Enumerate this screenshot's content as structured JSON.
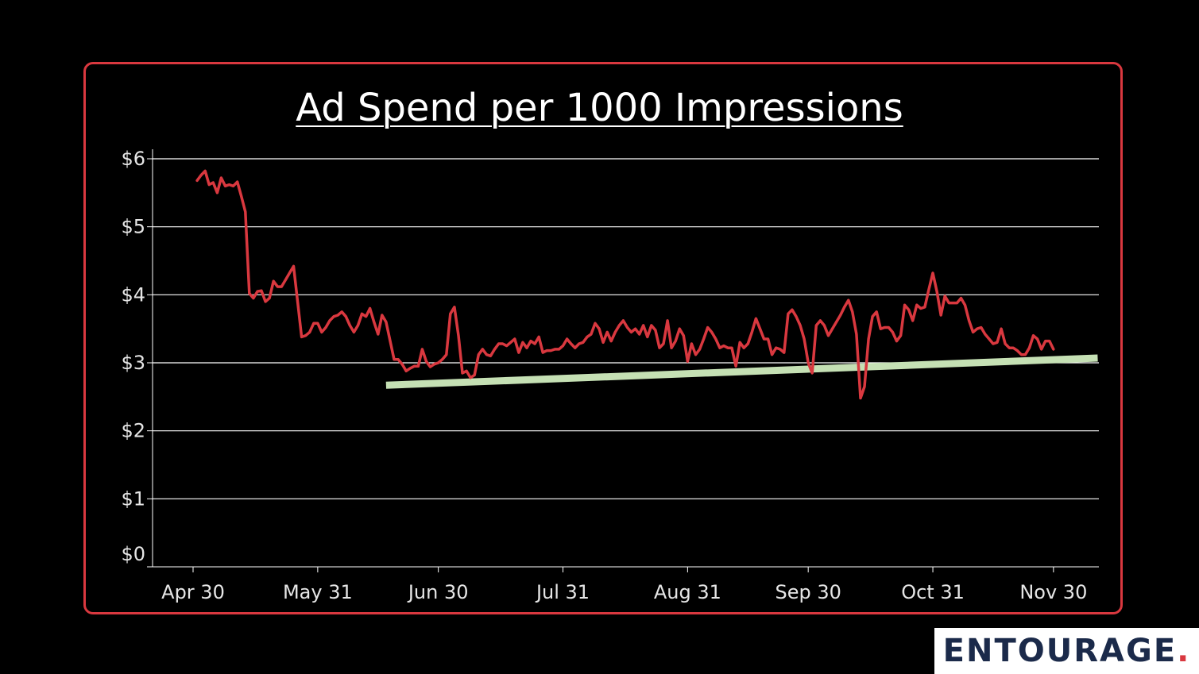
{
  "colors": {
    "background": "#000000",
    "frame": "#d9383f",
    "line": "#d9383f",
    "trend": "#c5e0b4",
    "grid": "#ffffff",
    "text": "#ffffff",
    "logo_text": "#1b2a4a"
  },
  "logo": {
    "text": "ENTOURAGE",
    "dot": "."
  },
  "chart_data": {
    "type": "line",
    "title": "Ad Spend per 1000 Impressions",
    "xlabel": "",
    "ylabel": "",
    "x_ticks": [
      {
        "label": "Apr 30",
        "day": 0
      },
      {
        "label": "May 31",
        "day": 31
      },
      {
        "label": "Jun 30",
        "day": 61
      },
      {
        "label": "Jul 31",
        "day": 92
      },
      {
        "label": "Aug 31",
        "day": 123
      },
      {
        "label": "Sep 30",
        "day": 153
      },
      {
        "label": "Oct 31",
        "day": 184
      },
      {
        "label": "Nov 30",
        "day": 214
      }
    ],
    "y_ticks": [
      "$0",
      "$1",
      "$2",
      "$3",
      "$4",
      "$5",
      "$6"
    ],
    "ylim": [
      0,
      6
    ],
    "grid": true,
    "series": [
      {
        "values": [
          [
            1,
            5.68
          ],
          [
            2,
            5.76
          ],
          [
            3,
            5.82
          ],
          [
            4,
            5.62
          ],
          [
            5,
            5.65
          ],
          [
            6,
            5.5
          ],
          [
            7,
            5.72
          ],
          [
            8,
            5.6
          ],
          [
            9,
            5.62
          ],
          [
            10,
            5.6
          ],
          [
            11,
            5.66
          ],
          [
            12,
            5.45
          ],
          [
            13,
            5.22
          ],
          [
            14,
            4.02
          ],
          [
            15,
            3.95
          ],
          [
            16,
            4.05
          ],
          [
            17,
            4.06
          ],
          [
            18,
            3.9
          ],
          [
            19,
            3.95
          ],
          [
            20,
            4.2
          ],
          [
            21,
            4.12
          ],
          [
            22,
            4.12
          ],
          [
            23,
            4.22
          ],
          [
            24,
            4.32
          ],
          [
            25,
            4.42
          ],
          [
            27,
            3.38
          ],
          [
            28,
            3.4
          ],
          [
            29,
            3.45
          ],
          [
            30,
            3.58
          ],
          [
            31,
            3.58
          ],
          [
            32,
            3.45
          ],
          [
            33,
            3.52
          ],
          [
            34,
            3.62
          ],
          [
            35,
            3.68
          ],
          [
            36,
            3.7
          ],
          [
            37,
            3.75
          ],
          [
            38,
            3.68
          ],
          [
            39,
            3.55
          ],
          [
            40,
            3.45
          ],
          [
            41,
            3.55
          ],
          [
            42,
            3.72
          ],
          [
            43,
            3.68
          ],
          [
            44,
            3.8
          ],
          [
            45,
            3.6
          ],
          [
            46,
            3.42
          ],
          [
            47,
            3.7
          ],
          [
            48,
            3.6
          ],
          [
            50,
            3.05
          ],
          [
            51,
            3.05
          ],
          [
            52,
            2.98
          ],
          [
            53,
            2.88
          ],
          [
            54,
            2.92
          ],
          [
            55,
            2.95
          ],
          [
            56,
            2.95
          ],
          [
            57,
            3.2
          ],
          [
            58,
            3.02
          ],
          [
            59,
            2.94
          ],
          [
            60,
            2.98
          ],
          [
            61,
            3.0
          ],
          [
            62,
            3.05
          ],
          [
            63,
            3.12
          ],
          [
            64,
            3.72
          ],
          [
            65,
            3.82
          ],
          [
            66,
            3.4
          ],
          [
            67,
            2.85
          ],
          [
            68,
            2.88
          ],
          [
            69,
            2.78
          ],
          [
            70,
            2.82
          ],
          [
            71,
            3.12
          ],
          [
            72,
            3.2
          ],
          [
            73,
            3.12
          ],
          [
            74,
            3.1
          ],
          [
            75,
            3.2
          ],
          [
            76,
            3.28
          ],
          [
            77,
            3.28
          ],
          [
            78,
            3.25
          ],
          [
            79,
            3.3
          ],
          [
            80,
            3.35
          ],
          [
            81,
            3.15
          ],
          [
            82,
            3.3
          ],
          [
            83,
            3.22
          ],
          [
            84,
            3.32
          ],
          [
            85,
            3.28
          ],
          [
            86,
            3.38
          ],
          [
            87,
            3.15
          ],
          [
            88,
            3.18
          ],
          [
            89,
            3.18
          ],
          [
            90,
            3.2
          ],
          [
            91,
            3.2
          ],
          [
            92,
            3.25
          ],
          [
            93,
            3.35
          ],
          [
            94,
            3.28
          ],
          [
            95,
            3.22
          ],
          [
            96,
            3.28
          ],
          [
            97,
            3.3
          ],
          [
            98,
            3.38
          ],
          [
            99,
            3.42
          ],
          [
            100,
            3.58
          ],
          [
            101,
            3.5
          ],
          [
            102,
            3.3
          ],
          [
            103,
            3.45
          ],
          [
            104,
            3.32
          ],
          [
            105,
            3.45
          ],
          [
            106,
            3.55
          ],
          [
            107,
            3.62
          ],
          [
            108,
            3.52
          ],
          [
            109,
            3.45
          ],
          [
            110,
            3.5
          ],
          [
            111,
            3.42
          ],
          [
            112,
            3.55
          ],
          [
            113,
            3.38
          ],
          [
            114,
            3.55
          ],
          [
            115,
            3.48
          ],
          [
            116,
            3.22
          ],
          [
            117,
            3.28
          ],
          [
            118,
            3.62
          ],
          [
            119,
            3.22
          ],
          [
            120,
            3.32
          ],
          [
            121,
            3.5
          ],
          [
            122,
            3.4
          ],
          [
            123,
            3.02
          ],
          [
            124,
            3.28
          ],
          [
            125,
            3.12
          ],
          [
            126,
            3.2
          ],
          [
            127,
            3.35
          ],
          [
            128,
            3.52
          ],
          [
            129,
            3.45
          ],
          [
            130,
            3.35
          ],
          [
            131,
            3.22
          ],
          [
            132,
            3.25
          ],
          [
            133,
            3.22
          ],
          [
            134,
            3.22
          ],
          [
            135,
            2.95
          ],
          [
            136,
            3.3
          ],
          [
            137,
            3.22
          ],
          [
            138,
            3.28
          ],
          [
            139,
            3.45
          ],
          [
            140,
            3.65
          ],
          [
            141,
            3.5
          ],
          [
            142,
            3.35
          ],
          [
            143,
            3.35
          ],
          [
            144,
            3.12
          ],
          [
            145,
            3.22
          ],
          [
            146,
            3.2
          ],
          [
            147,
            3.15
          ],
          [
            148,
            3.72
          ],
          [
            149,
            3.78
          ],
          [
            150,
            3.68
          ],
          [
            151,
            3.55
          ],
          [
            152,
            3.35
          ],
          [
            153,
            3.0
          ],
          [
            154,
            2.85
          ],
          [
            155,
            3.55
          ],
          [
            156,
            3.62
          ],
          [
            157,
            3.55
          ],
          [
            158,
            3.4
          ],
          [
            159,
            3.5
          ],
          [
            160,
            3.6
          ],
          [
            161,
            3.7
          ],
          [
            162,
            3.82
          ],
          [
            163,
            3.92
          ],
          [
            164,
            3.75
          ],
          [
            165,
            3.42
          ],
          [
            166,
            2.48
          ],
          [
            167,
            2.65
          ],
          [
            168,
            3.35
          ],
          [
            169,
            3.68
          ],
          [
            170,
            3.75
          ],
          [
            171,
            3.5
          ],
          [
            172,
            3.52
          ],
          [
            173,
            3.52
          ],
          [
            174,
            3.45
          ],
          [
            175,
            3.32
          ],
          [
            176,
            3.4
          ],
          [
            177,
            3.85
          ],
          [
            178,
            3.78
          ],
          [
            179,
            3.62
          ],
          [
            180,
            3.85
          ],
          [
            181,
            3.8
          ],
          [
            182,
            3.82
          ],
          [
            183,
            4.08
          ],
          [
            184,
            4.32
          ],
          [
            185,
            4.05
          ],
          [
            186,
            3.7
          ],
          [
            187,
            3.98
          ],
          [
            188,
            3.88
          ],
          [
            189,
            3.88
          ],
          [
            190,
            3.88
          ],
          [
            191,
            3.95
          ],
          [
            192,
            3.85
          ],
          [
            193,
            3.62
          ],
          [
            194,
            3.45
          ],
          [
            195,
            3.5
          ],
          [
            196,
            3.52
          ],
          [
            197,
            3.42
          ],
          [
            198,
            3.35
          ],
          [
            199,
            3.28
          ],
          [
            200,
            3.3
          ],
          [
            201,
            3.5
          ],
          [
            202,
            3.28
          ],
          [
            203,
            3.22
          ],
          [
            204,
            3.22
          ],
          [
            205,
            3.18
          ],
          [
            206,
            3.12
          ],
          [
            207,
            3.12
          ],
          [
            208,
            3.22
          ],
          [
            209,
            3.4
          ],
          [
            210,
            3.35
          ],
          [
            211,
            3.2
          ],
          [
            212,
            3.32
          ],
          [
            213,
            3.32
          ],
          [
            214,
            3.2
          ]
        ]
      }
    ],
    "trendline": {
      "start": [
        48,
        2.67
      ],
      "end": [
        225,
        3.07
      ]
    }
  }
}
